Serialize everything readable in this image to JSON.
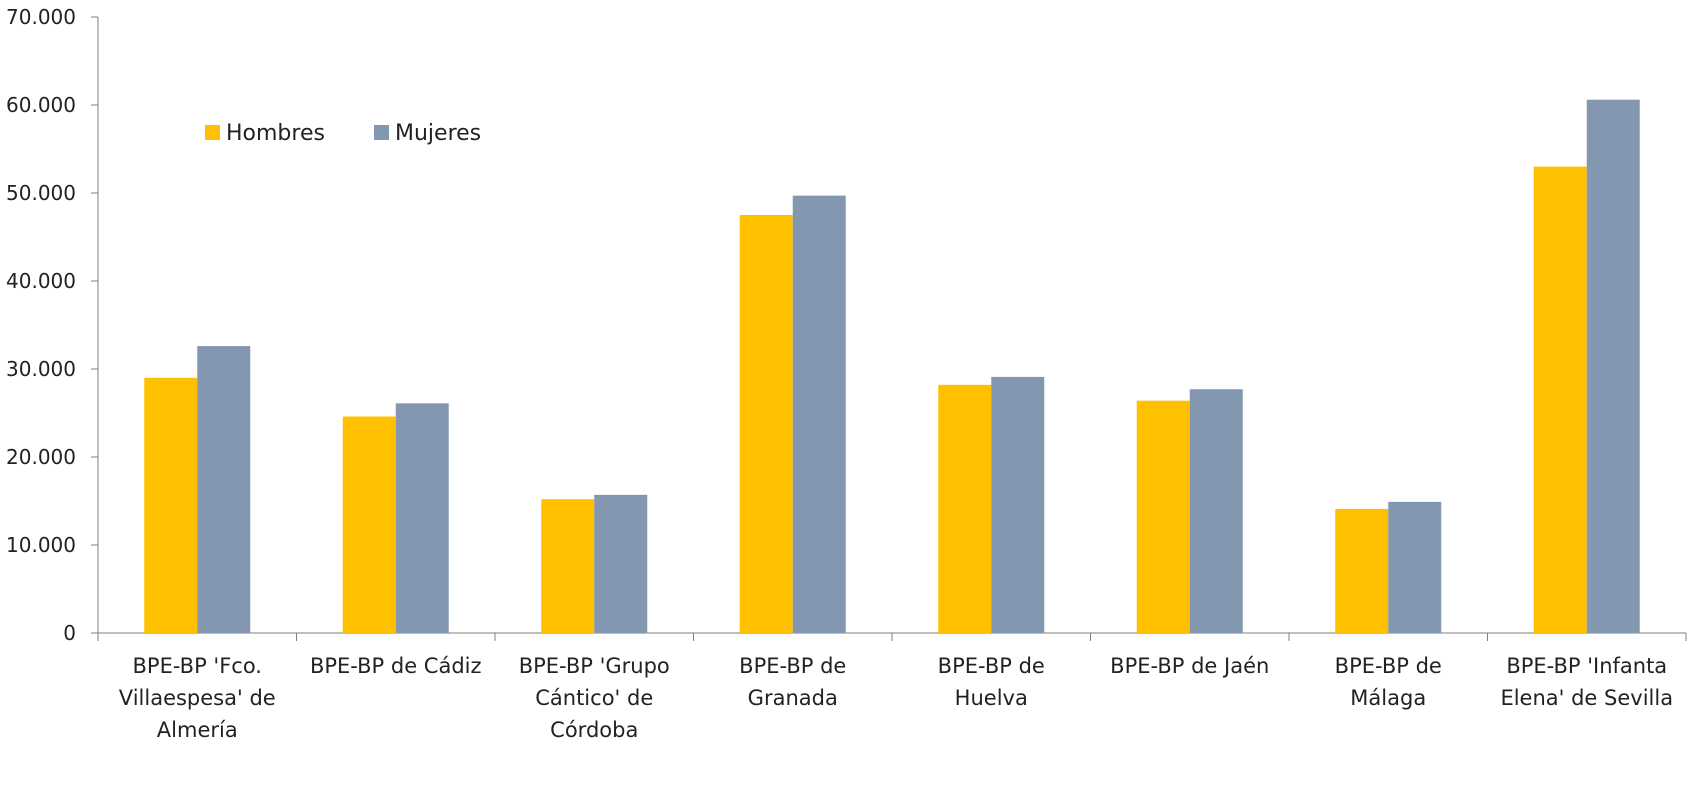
{
  "colors": {
    "hombres": "#ffc000",
    "mujeres": "#8497b0",
    "axis": "#7f7f7f",
    "text": "#222222"
  },
  "chart_data": {
    "type": "bar",
    "title": "",
    "xlabel": "",
    "ylabel": "",
    "ylim": [
      0,
      70000
    ],
    "yticks": [
      0,
      10000,
      20000,
      30000,
      40000,
      50000,
      60000,
      70000
    ],
    "ytick_labels": [
      "0",
      "10.000",
      "20.000",
      "30.000",
      "40.000",
      "50.000",
      "60.000",
      "70.000"
    ],
    "grid": false,
    "legend_position": "top-left",
    "categories": [
      "BPE-BP 'Fco. Villaespesa' de Almería",
      "BPE-BP de Cádiz",
      "BPE-BP 'Grupo Cántico' de Córdoba",
      "BPE-BP de Granada",
      "BPE-BP de Huelva",
      "BPE-BP de Jaén",
      "BPE-BP de Málaga",
      "BPE-BP 'Infanta Elena' de Sevilla"
    ],
    "category_lines": [
      [
        "BPE-BP 'Fco.",
        "Villaespesa' de",
        "Almería"
      ],
      [
        "BPE-BP de Cádiz"
      ],
      [
        "BPE-BP 'Grupo",
        "Cántico' de",
        "Córdoba"
      ],
      [
        "BPE-BP de",
        "Granada"
      ],
      [
        "BPE-BP de",
        "Huelva"
      ],
      [
        "BPE-BP de Jaén"
      ],
      [
        "BPE-BP de",
        "Málaga"
      ],
      [
        "BPE-BP 'Infanta",
        "Elena' de Sevilla"
      ]
    ],
    "series": [
      {
        "name": "Hombres",
        "color": "#ffc000",
        "values": [
          29000,
          24600,
          15200,
          47500,
          28200,
          26400,
          14100,
          53000
        ]
      },
      {
        "name": "Mujeres",
        "color": "#8497b0",
        "values": [
          32600,
          26100,
          15700,
          49700,
          29100,
          27700,
          14900,
          60600
        ]
      }
    ]
  }
}
